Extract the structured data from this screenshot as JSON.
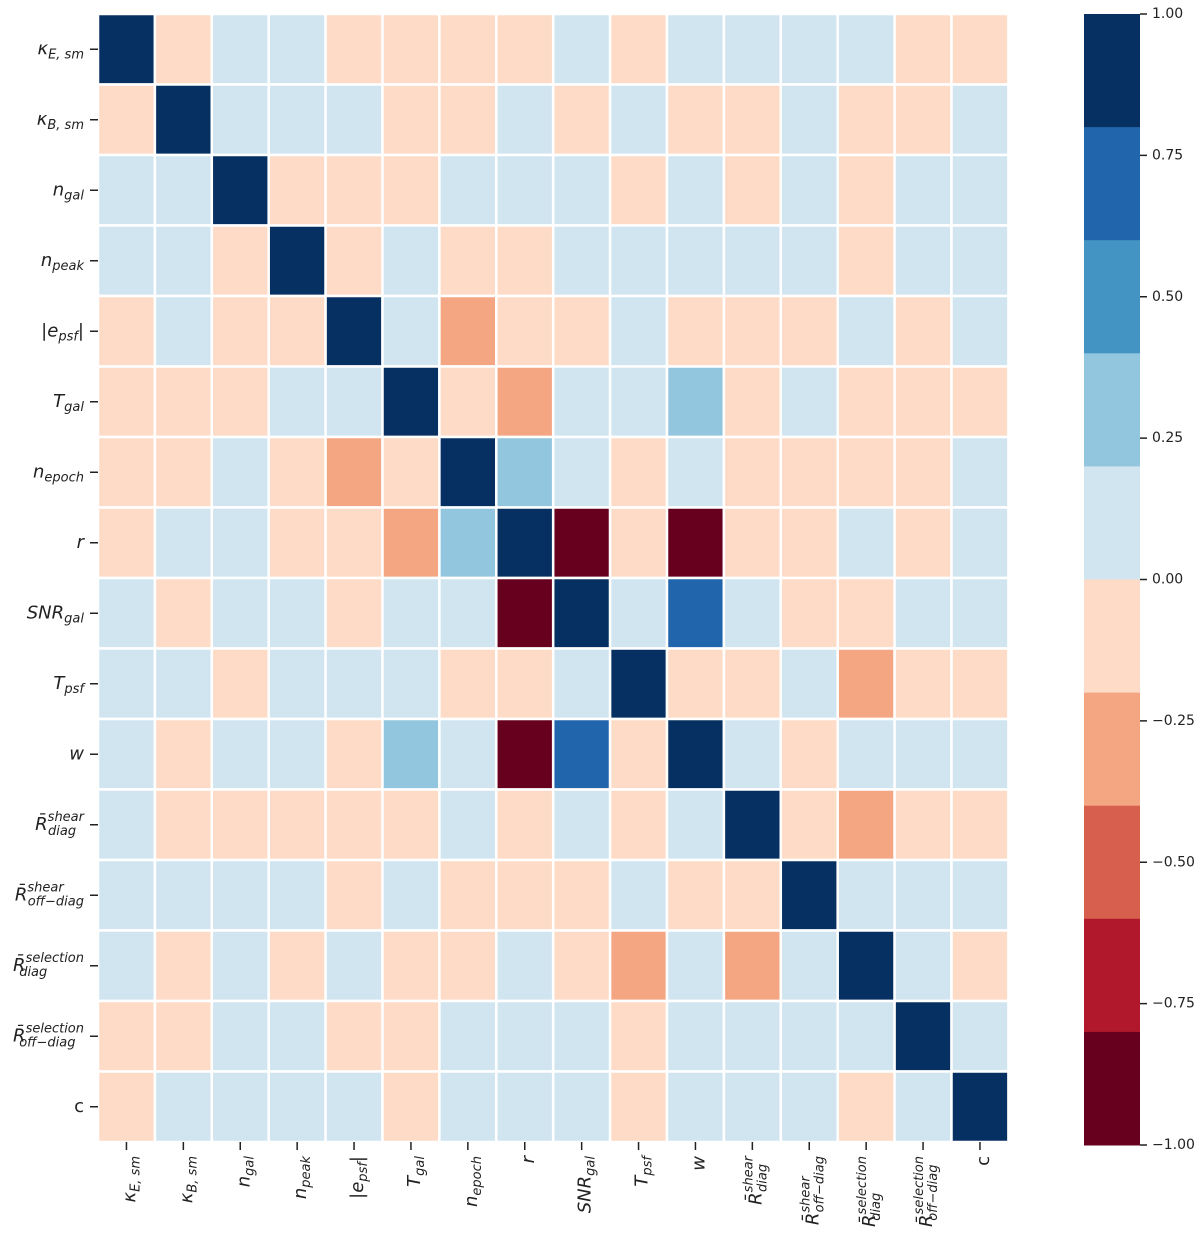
{
  "chart_data": {
    "type": "heatmap",
    "title": "",
    "xlabel": "",
    "ylabel": "",
    "labels": [
      {
        "base": "κ",
        "sub": "E, sm",
        "sup": "",
        "bar": false
      },
      {
        "base": "κ",
        "sub": "B, sm",
        "sup": "",
        "bar": false
      },
      {
        "base": "n",
        "sub": "gal",
        "sup": "",
        "bar": false
      },
      {
        "base": "n",
        "sub": "peak",
        "sup": "",
        "bar": false
      },
      {
        "base": "|e",
        "sub": "psf",
        "sup": "",
        "bar": false,
        "tail": "|"
      },
      {
        "base": "T",
        "sub": "gal",
        "sup": "",
        "bar": false
      },
      {
        "base": "n",
        "sub": "epoch",
        "sup": "",
        "bar": false
      },
      {
        "base": "r",
        "sub": "",
        "sup": "",
        "bar": false
      },
      {
        "base": "SNR",
        "sub": "gal",
        "sup": "",
        "bar": false
      },
      {
        "base": "T",
        "sub": "psf",
        "sup": "",
        "bar": false
      },
      {
        "base": "w",
        "sub": "",
        "sup": "",
        "bar": false
      },
      {
        "base": "R",
        "sub": "diag",
        "sup": "shear",
        "bar": true
      },
      {
        "base": "R",
        "sub": "off−diag",
        "sup": "shear",
        "bar": true
      },
      {
        "base": "R",
        "sub": "diag",
        "sup": "selection",
        "bar": true
      },
      {
        "base": "R",
        "sub": "off−diag",
        "sup": "selection",
        "bar": true
      },
      {
        "base": "c",
        "sub": "",
        "sup": "",
        "bar": false,
        "upright": true
      }
    ],
    "matrix": [
      [
        1.0,
        -0.05,
        0.05,
        0.05,
        -0.05,
        -0.05,
        -0.05,
        -0.05,
        0.05,
        -0.05,
        0.05,
        0.05,
        0.05,
        0.05,
        -0.05,
        -0.05
      ],
      [
        -0.05,
        1.0,
        0.05,
        0.05,
        0.05,
        -0.05,
        -0.05,
        0.05,
        -0.05,
        0.05,
        -0.05,
        -0.05,
        0.05,
        -0.05,
        -0.05,
        0.05
      ],
      [
        0.05,
        0.05,
        1.0,
        -0.05,
        -0.05,
        -0.05,
        0.05,
        0.05,
        0.05,
        -0.05,
        0.05,
        -0.05,
        0.05,
        -0.05,
        0.05,
        0.05
      ],
      [
        0.05,
        0.05,
        -0.05,
        1.0,
        -0.05,
        0.05,
        -0.05,
        -0.05,
        0.05,
        0.05,
        0.05,
        0.05,
        0.05,
        -0.05,
        0.05,
        0.05
      ],
      [
        -0.05,
        0.05,
        -0.05,
        -0.05,
        1.0,
        0.05,
        -0.3,
        -0.05,
        -0.05,
        0.05,
        -0.05,
        -0.05,
        -0.05,
        0.05,
        -0.05,
        0.05
      ],
      [
        -0.05,
        -0.05,
        -0.05,
        0.05,
        0.05,
        1.0,
        -0.05,
        -0.3,
        0.05,
        0.05,
        0.3,
        -0.05,
        0.05,
        -0.05,
        -0.05,
        -0.05
      ],
      [
        -0.05,
        -0.05,
        0.05,
        -0.05,
        -0.3,
        -0.05,
        1.0,
        0.3,
        0.05,
        -0.05,
        0.05,
        -0.05,
        -0.05,
        -0.05,
        -0.05,
        0.05
      ],
      [
        -0.05,
        0.05,
        0.05,
        -0.05,
        -0.05,
        -0.3,
        0.3,
        1.0,
        -1.0,
        -0.05,
        -1.0,
        -0.05,
        -0.05,
        0.05,
        -0.05,
        0.05
      ],
      [
        0.05,
        -0.05,
        0.05,
        0.05,
        -0.05,
        0.05,
        0.05,
        -1.0,
        1.0,
        0.05,
        0.7,
        0.05,
        -0.05,
        -0.05,
        0.05,
        0.05
      ],
      [
        0.05,
        0.05,
        -0.05,
        0.05,
        0.05,
        0.05,
        -0.05,
        -0.05,
        0.05,
        1.0,
        -0.05,
        -0.05,
        0.05,
        -0.3,
        -0.05,
        -0.05
      ],
      [
        0.05,
        -0.05,
        0.05,
        0.05,
        -0.05,
        0.3,
        0.05,
        -1.0,
        0.7,
        -0.05,
        1.0,
        0.05,
        -0.05,
        0.05,
        0.05,
        0.05
      ],
      [
        0.05,
        -0.05,
        -0.05,
        -0.05,
        -0.05,
        -0.05,
        0.05,
        -0.05,
        0.05,
        -0.05,
        0.05,
        1.0,
        -0.05,
        -0.3,
        -0.05,
        -0.05
      ],
      [
        0.05,
        0.05,
        0.05,
        0.05,
        -0.05,
        0.05,
        -0.05,
        -0.05,
        -0.05,
        0.05,
        -0.05,
        -0.05,
        1.0,
        0.05,
        0.05,
        0.05
      ],
      [
        0.05,
        -0.05,
        0.05,
        -0.05,
        0.05,
        -0.05,
        -0.05,
        0.05,
        -0.05,
        -0.3,
        0.05,
        -0.3,
        0.05,
        1.0,
        0.05,
        -0.05
      ],
      [
        -0.05,
        -0.05,
        0.05,
        0.05,
        -0.05,
        -0.05,
        0.05,
        0.05,
        0.05,
        -0.05,
        0.05,
        0.05,
        0.05,
        0.05,
        1.0,
        0.05
      ],
      [
        -0.05,
        0.05,
        0.05,
        0.05,
        0.05,
        -0.05,
        0.05,
        0.05,
        0.05,
        -0.05,
        0.05,
        0.05,
        0.05,
        -0.05,
        0.05,
        1.0
      ]
    ],
    "vmin": -1.0,
    "vmax": 1.0,
    "colorbar": {
      "ticks": [
        1.0,
        0.75,
        0.5,
        0.25,
        0.0,
        -0.25,
        -0.5,
        -0.75,
        -1.0
      ],
      "tick_labels": [
        "1.00",
        "0.75",
        "0.50",
        "0.25",
        "0.00",
        "−0.25",
        "−0.50",
        "−0.75",
        "−1.00"
      ],
      "levels": 10,
      "colors_top_to_bottom": [
        "#053061",
        "#2166ac",
        "#4393c3",
        "#92c5de",
        "#d1e5f0",
        "#fddbc7",
        "#f4a582",
        "#d6604d",
        "#b2182b",
        "#67001f"
      ],
      "position": "right"
    },
    "colors": {
      "grid_line": "#ffffff",
      "strong_positive": "#053061",
      "strong_negative": "#67001f"
    }
  }
}
